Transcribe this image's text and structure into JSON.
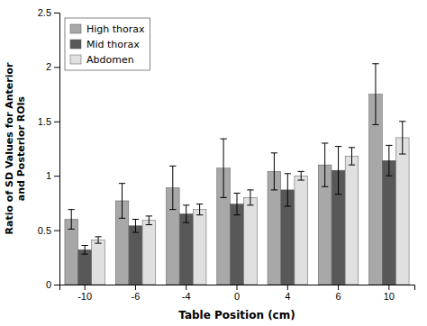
{
  "chart_data": {
    "type": "bar",
    "categories": [
      "-10",
      "-6",
      "-4",
      "0",
      "4",
      "6",
      "10"
    ],
    "series": [
      {
        "name": "High thorax",
        "color": "#a8a8a8",
        "values": [
          0.6,
          0.77,
          0.89,
          1.07,
          1.04,
          1.1,
          1.75
        ],
        "errors": [
          0.09,
          0.16,
          0.2,
          0.27,
          0.17,
          0.2,
          0.28
        ]
      },
      {
        "name": "Mid thorax",
        "color": "#585858",
        "values": [
          0.32,
          0.54,
          0.65,
          0.74,
          0.87,
          1.05,
          1.14
        ],
        "errors": [
          0.04,
          0.06,
          0.08,
          0.1,
          0.15,
          0.22,
          0.14
        ]
      },
      {
        "name": "Abdomen",
        "color": "#e0e0e0",
        "values": [
          0.41,
          0.59,
          0.69,
          0.8,
          1.0,
          1.18,
          1.35
        ],
        "errors": [
          0.03,
          0.04,
          0.05,
          0.07,
          0.04,
          0.08,
          0.15
        ]
      }
    ],
    "xlabel": "Table Position (cm)",
    "ylabel": "Ratio of SD Values for Anterior\nand Posterior ROIs",
    "ylim": [
      0,
      2.5
    ],
    "yticks": [
      0,
      0.5,
      1,
      1.5,
      2,
      2.5
    ],
    "legend": "upper left",
    "grid": false
  }
}
